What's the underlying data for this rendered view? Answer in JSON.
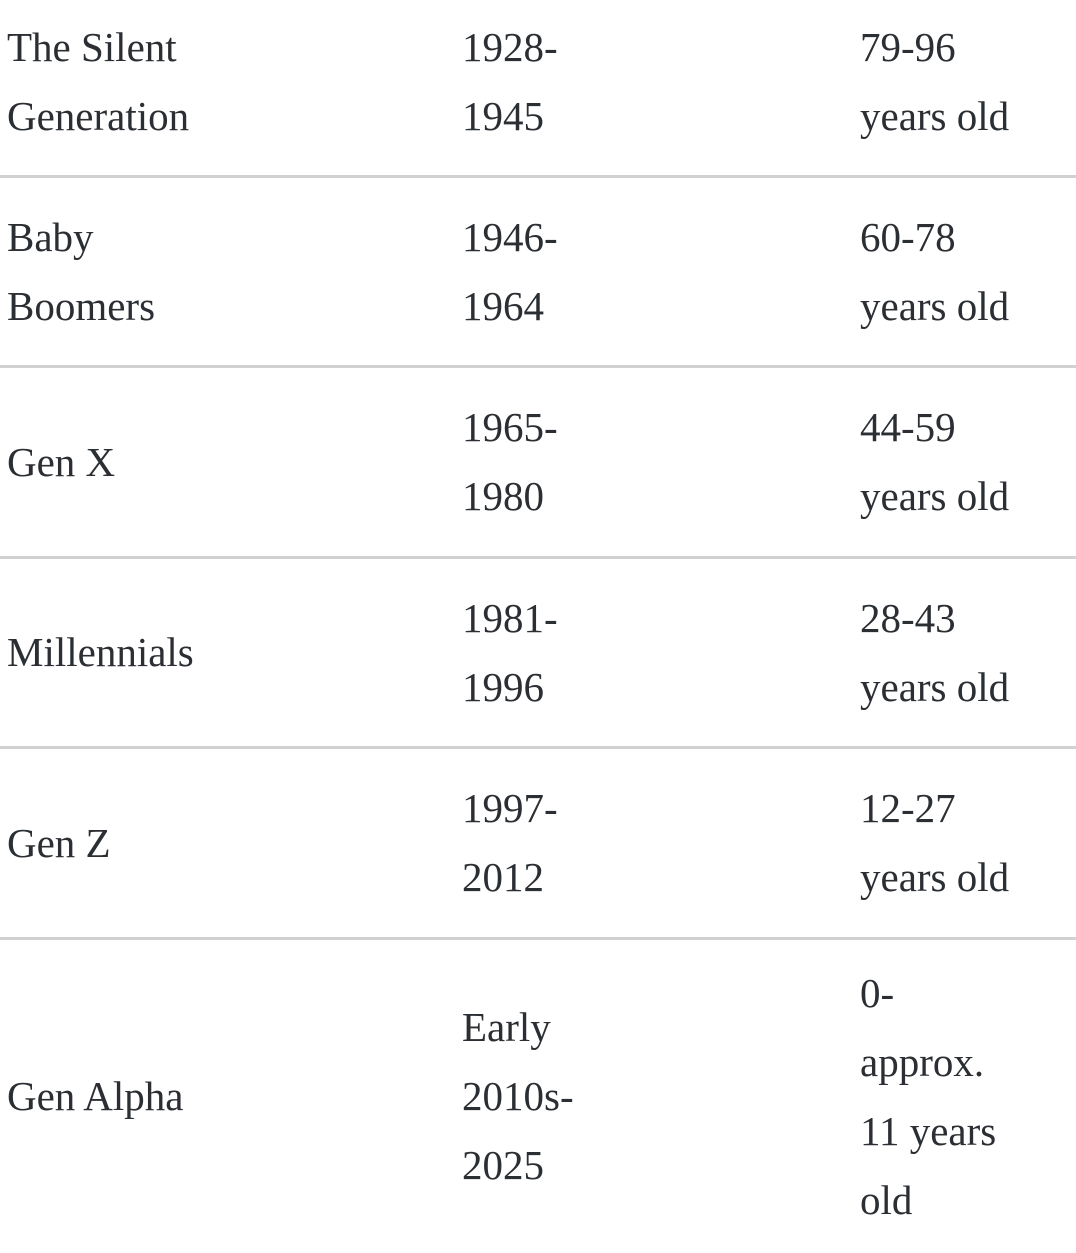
{
  "generations_table": {
    "rows": [
      {
        "generation": "The Silent\nGeneration",
        "birth_years": "1928-\n1945",
        "age_range": "79-96\nyears old"
      },
      {
        "generation": "Baby\nBoomers",
        "birth_years": "1946-\n1964",
        "age_range": "60-78\nyears old"
      },
      {
        "generation": "Gen X",
        "birth_years": "1965-\n1980",
        "age_range": "44-59\nyears old"
      },
      {
        "generation": "Millennials",
        "birth_years": "1981-\n1996",
        "age_range": "28-43\nyears old"
      },
      {
        "generation": "Gen Z",
        "birth_years": "1997-\n2012",
        "age_range": "12-27\nyears old"
      },
      {
        "generation": "Gen Alpha",
        "birth_years": "Early\n2010s-\n2025",
        "age_range": "0-\napprox.\n11 years\nold"
      }
    ]
  },
  "colors": {
    "text": "#2b2f33",
    "divider": "#cfd1d3",
    "background": "#ffffff"
  }
}
